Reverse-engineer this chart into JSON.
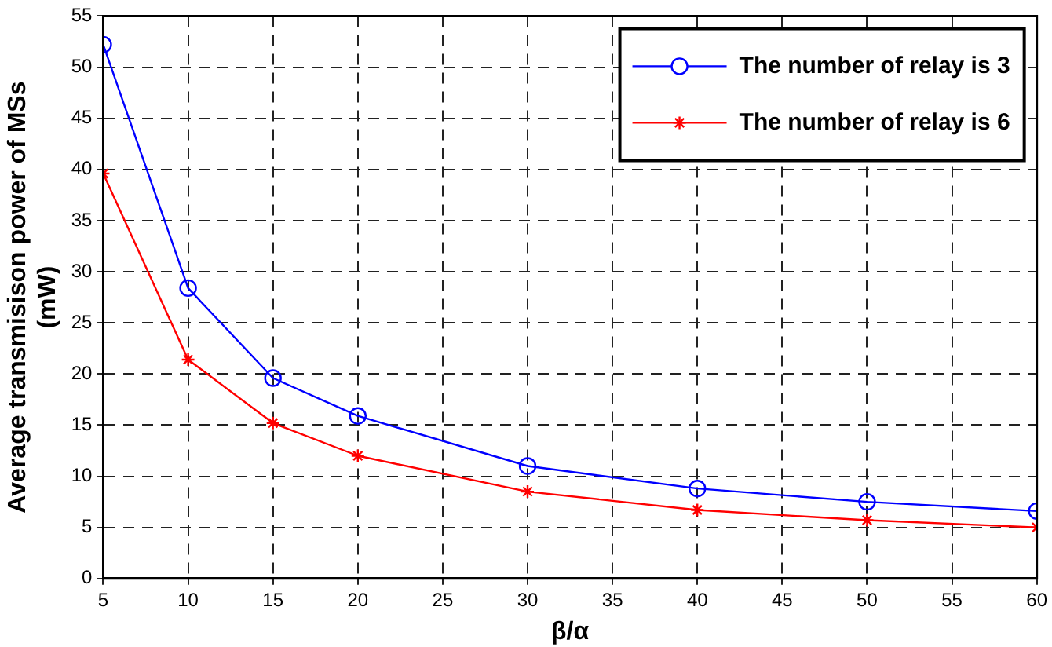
{
  "chart_data": {
    "type": "line",
    "xlabel": "β/α",
    "ylabel": "Average transmisison power of MSs (mW)",
    "x": [
      5,
      10,
      15,
      20,
      30,
      40,
      50,
      60
    ],
    "series": [
      {
        "name": "The number of relay is 3",
        "color": "#0000ff",
        "marker": "circle",
        "values": [
          52.2,
          28.4,
          19.6,
          15.9,
          11.0,
          8.8,
          7.5,
          6.6
        ]
      },
      {
        "name": "The number of relay is 6",
        "color": "#ff0000",
        "marker": "cross",
        "values": [
          39.6,
          21.4,
          15.2,
          12,
          8.5,
          6.7,
          5.7,
          5.0
        ]
      }
    ],
    "xlim": [
      5,
      60
    ],
    "xticks": [
      5,
      10,
      15,
      20,
      25,
      30,
      35,
      40,
      45,
      50,
      55,
      60
    ],
    "ylim": [
      0,
      55
    ],
    "yticks": [
      0,
      5,
      10,
      15,
      20,
      25,
      30,
      35,
      40,
      45,
      50,
      55
    ],
    "grid": true,
    "legend": "top right",
    "line_style": "solid"
  }
}
